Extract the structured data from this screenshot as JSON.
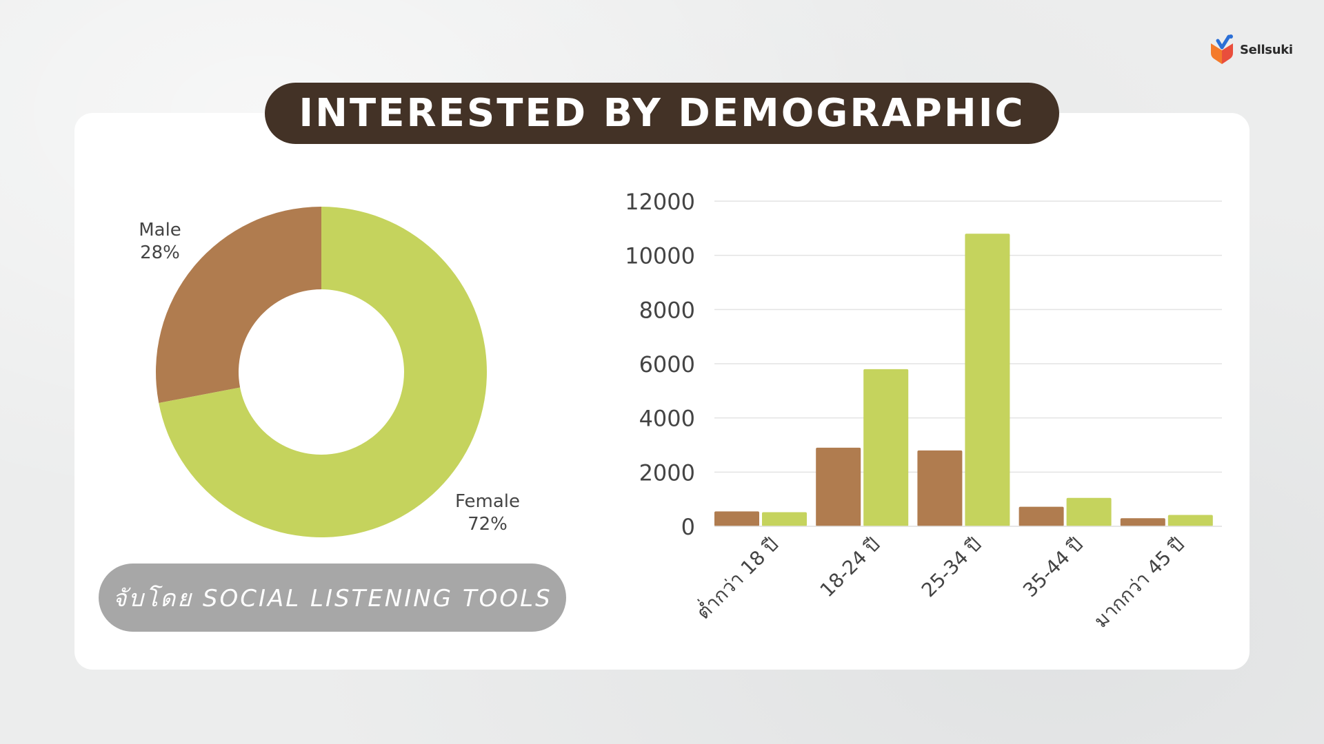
{
  "brand": {
    "name": "Sellsuki"
  },
  "title": "INTERESTED BY DEMOGRAPHIC",
  "source_note": "จับโดย SOCIAL LISTENING TOOLS",
  "colors": {
    "male": "#b07c4f",
    "female": "#c5d35d",
    "title_bg": "#433226",
    "note_bg": "#a7a7a7"
  },
  "chart_data": [
    {
      "type": "pie",
      "style": "donut",
      "slices": [
        {
          "label": "Male",
          "pct_label": "28%",
          "value": 28,
          "color": "#b07c4f"
        },
        {
          "label": "Female",
          "pct_label": "72%",
          "value": 72,
          "color": "#c5d35d"
        }
      ]
    },
    {
      "type": "bar",
      "categories": [
        "ต่ำกว่า 18 ปี",
        "18-24 ปี",
        "25-34 ปี",
        "35-44 ปี",
        "มากกว่า 45 ปี"
      ],
      "series": [
        {
          "values": [
            550,
            2900,
            2800,
            720,
            300
          ],
          "color": "#b07c4f"
        },
        {
          "values": [
            520,
            5800,
            10800,
            1050,
            420
          ],
          "color": "#c5d35d"
        }
      ],
      "ylim": [
        0,
        12000
      ],
      "yticks": [
        0,
        2000,
        4000,
        6000,
        8000,
        10000,
        12000
      ],
      "grid": true,
      "xlabel": "",
      "ylabel": ""
    }
  ]
}
